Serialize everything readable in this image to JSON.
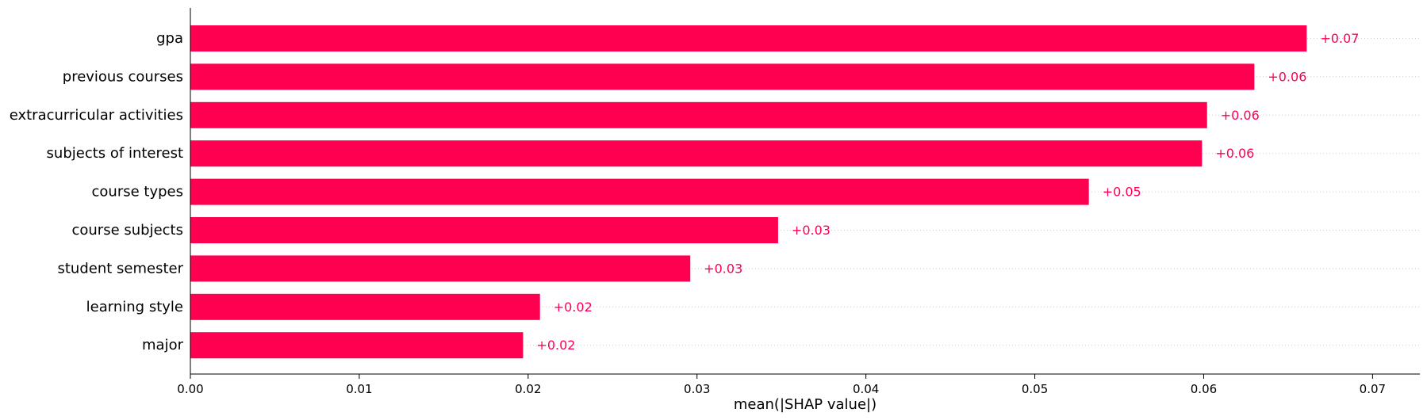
{
  "chart_data": {
    "type": "bar",
    "orientation": "horizontal",
    "categories": [
      "gpa",
      "previous courses",
      "extracurricular activities",
      "subjects of interest",
      "course types",
      "course subjects",
      "student semester",
      "learning style",
      "major"
    ],
    "values": [
      0.0661,
      0.063,
      0.0602,
      0.0599,
      0.0532,
      0.0348,
      0.0296,
      0.0207,
      0.0197
    ],
    "value_labels": [
      "+0.07",
      "+0.06",
      "+0.06",
      "+0.06",
      "+0.05",
      "+0.03",
      "+0.03",
      "+0.02",
      "+0.02"
    ],
    "xlabel": "mean(|SHAP value|)",
    "xlim": [
      0,
      0.0728
    ],
    "xticks": [
      0.0,
      0.01,
      0.02,
      0.03,
      0.04,
      0.05,
      0.06,
      0.07
    ],
    "xtick_labels": [
      "0.00",
      "0.01",
      "0.02",
      "0.03",
      "0.04",
      "0.05",
      "0.06",
      "0.07"
    ],
    "bar_color": "#ff0051",
    "label_color": "#ff0051",
    "grid": "dotted row guides",
    "legend": "none"
  }
}
